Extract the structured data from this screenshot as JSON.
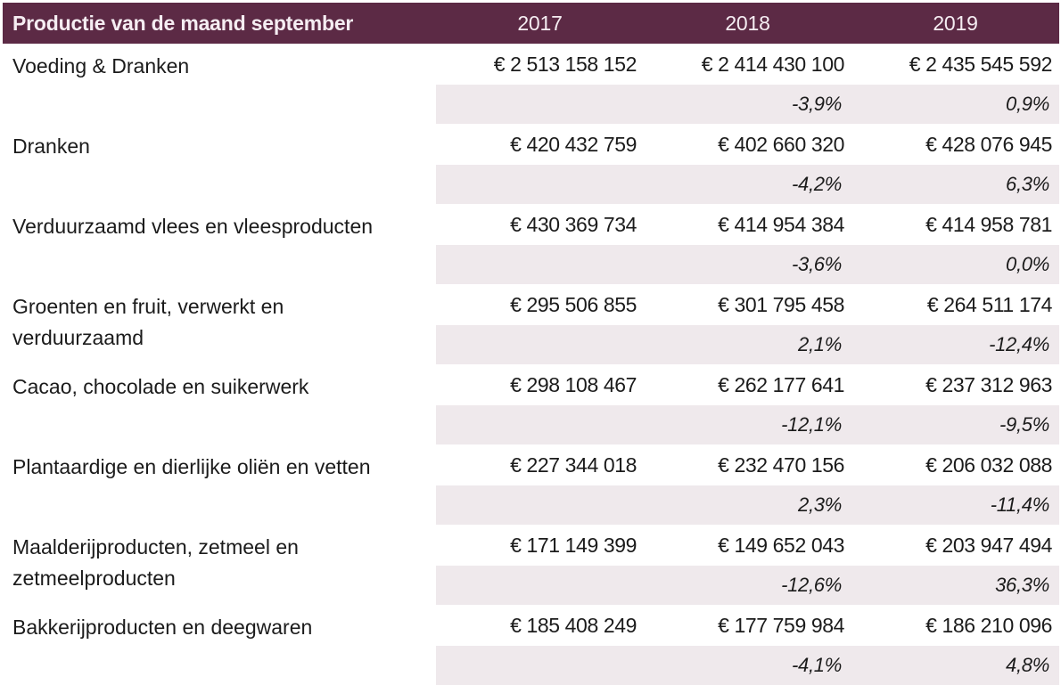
{
  "header": {
    "title": "Productie van de maand september",
    "years": [
      "2017",
      "2018",
      "2019"
    ]
  },
  "colors": {
    "header_bg": "#5c2a45",
    "header_text": "#f5edf2",
    "band_bg": "#efe9ec",
    "body_text": "#1b1b1b"
  },
  "rows": [
    {
      "label": "Voeding & Dranken",
      "values": [
        "€ 2 513 158 152",
        "€ 2 414 430 100",
        "€ 2 435 545 592"
      ],
      "pct": [
        "",
        "-3,9%",
        "0,9%"
      ]
    },
    {
      "label": "Dranken",
      "values": [
        "€ 420 432 759",
        "€ 402 660 320",
        "€ 428 076 945"
      ],
      "pct": [
        "",
        "-4,2%",
        "6,3%"
      ]
    },
    {
      "label": "Verduurzaamd vlees en vleesproducten",
      "values": [
        "€ 430 369 734",
        "€ 414 954 384",
        "€ 414 958 781"
      ],
      "pct": [
        "",
        "-3,6%",
        "0,0%"
      ]
    },
    {
      "label": "Groenten en fruit, verwerkt en\nverduurzaamd",
      "values": [
        "€ 295 506 855",
        "€ 301 795 458",
        "€ 264 511 174"
      ],
      "pct": [
        "",
        "2,1%",
        "-12,4%"
      ]
    },
    {
      "label": "Cacao, chocolade en suikerwerk",
      "values": [
        "€ 298 108 467",
        "€ 262 177 641",
        "€ 237 312 963"
      ],
      "pct": [
        "",
        "-12,1%",
        "-9,5%"
      ]
    },
    {
      "label": "Plantaardige en dierlijke oliën en vetten",
      "values": [
        "€ 227 344 018",
        "€ 232 470 156",
        "€ 206 032 088"
      ],
      "pct": [
        "",
        "2,3%",
        "-11,4%"
      ]
    },
    {
      "label": "Maalderijproducten, zetmeel en\nzetmeelproducten",
      "values": [
        "€ 171 149 399",
        "€ 149 652 043",
        "€ 203 947 494"
      ],
      "pct": [
        "",
        "-12,6%",
        "36,3%"
      ]
    },
    {
      "label": "Bakkerijproducten en deegwaren",
      "values": [
        "€ 185 408 249",
        "€ 177 759 984",
        "€ 186 210 096"
      ],
      "pct": [
        "",
        "-4,1%",
        "4,8%"
      ]
    }
  ],
  "chart_data": {
    "type": "table",
    "title": "Productie van de maand september",
    "columns": [
      "Productie van de maand september",
      "2017",
      "2018",
      "2019"
    ],
    "unit": "EUR",
    "rows": [
      {
        "category": "Voeding & Dranken",
        "y2017": 2513158152,
        "y2018": 2414430100,
        "y2019": 2435545592,
        "pct_2018": -3.9,
        "pct_2019": 0.9
      },
      {
        "category": "Dranken",
        "y2017": 420432759,
        "y2018": 402660320,
        "y2019": 428076945,
        "pct_2018": -4.2,
        "pct_2019": 6.3
      },
      {
        "category": "Verduurzaamd vlees en vleesproducten",
        "y2017": 430369734,
        "y2018": 414954384,
        "y2019": 414958781,
        "pct_2018": -3.6,
        "pct_2019": 0.0
      },
      {
        "category": "Groenten en fruit, verwerkt en verduurzaamd",
        "y2017": 295506855,
        "y2018": 301795458,
        "y2019": 264511174,
        "pct_2018": 2.1,
        "pct_2019": -12.4
      },
      {
        "category": "Cacao, chocolade en suikerwerk",
        "y2017": 298108467,
        "y2018": 262177641,
        "y2019": 237312963,
        "pct_2018": -12.1,
        "pct_2019": -9.5
      },
      {
        "category": "Plantaardige en dierlijke oliën en vetten",
        "y2017": 227344018,
        "y2018": 232470156,
        "y2019": 206032088,
        "pct_2018": 2.3,
        "pct_2019": -11.4
      },
      {
        "category": "Maalderijproducten, zetmeel en zetmeelproducten",
        "y2017": 171149399,
        "y2018": 149652043,
        "y2019": 203947494,
        "pct_2018": -12.6,
        "pct_2019": 36.3
      },
      {
        "category": "Bakkerijproducten en deegwaren",
        "y2017": 185408249,
        "y2018": 177759984,
        "y2019": 186210096,
        "pct_2018": -4.1,
        "pct_2019": 4.8
      }
    ]
  }
}
